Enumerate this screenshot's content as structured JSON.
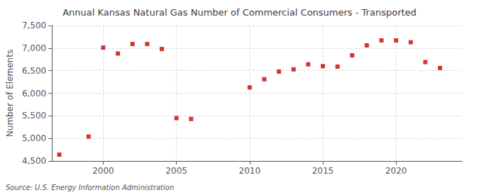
{
  "chart_data": {
    "type": "scatter",
    "title": "Annual Kansas Natural Gas Number of Commercial Consumers - Transported",
    "ylabel": "Number of Elements",
    "source": "Source: U.S. Energy Information Administration",
    "x": [
      1997,
      1999,
      2000,
      2001,
      2002,
      2003,
      2004,
      2005,
      2006,
      2010,
      2011,
      2012,
      2013,
      2014,
      2015,
      2016,
      2017,
      2018,
      2019,
      2020,
      2021,
      2022,
      2023
    ],
    "values": [
      4640,
      5040,
      7010,
      6880,
      7090,
      7090,
      6980,
      5450,
      5430,
      6130,
      6310,
      6480,
      6530,
      6640,
      6600,
      6590,
      6840,
      7060,
      7170,
      7170,
      7130,
      6690,
      6560
    ],
    "color": "#cc0000",
    "marker": "square",
    "xlim": [
      1996.5,
      2024.5
    ],
    "xticks": [
      2000,
      2005,
      2010,
      2015,
      2020
    ],
    "ylim": [
      4500,
      7500
    ],
    "yticks": [
      {
        "value": 4500,
        "label": "4,500"
      },
      {
        "value": 5000,
        "label": "5,000"
      },
      {
        "value": 5500,
        "label": "5,500"
      },
      {
        "value": 6000,
        "label": "6,000"
      },
      {
        "value": 6500,
        "label": "6,500"
      },
      {
        "value": 7000,
        "label": "7,000"
      },
      {
        "value": 7500,
        "label": "7,500"
      }
    ],
    "grid": true
  }
}
